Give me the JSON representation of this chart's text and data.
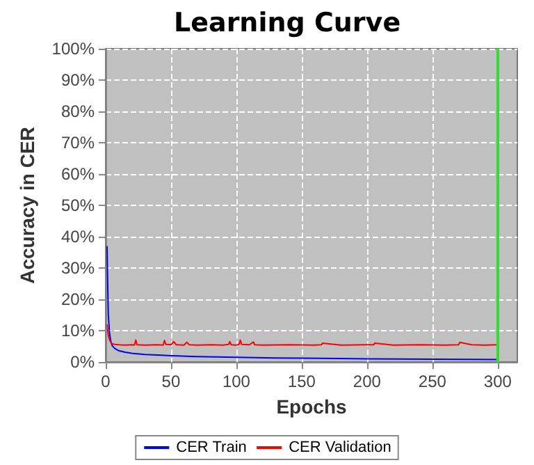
{
  "chart_data": {
    "type": "line",
    "title": "Learning Curve",
    "xlabel": "Epochs",
    "ylabel": "Accuracy in CER",
    "series": [
      {
        "name": "CER Train",
        "color": "#0000ff",
        "x": [
          1,
          2,
          3,
          4,
          5,
          7,
          10,
          15,
          20,
          30,
          40,
          50,
          70,
          100,
          130,
          150,
          200,
          250,
          300
        ],
        "values": [
          37,
          15,
          9,
          6.5,
          5.2,
          4.3,
          3.6,
          3.1,
          2.8,
          2.4,
          2.2,
          2,
          1.7,
          1.5,
          1.3,
          1.2,
          1,
          0.9,
          0.8
        ]
      },
      {
        "name": "CER Validation",
        "color": "#ff0000",
        "x": [
          1,
          2,
          3,
          4,
          5,
          7,
          10,
          15,
          20,
          22,
          23,
          24,
          30,
          40,
          44,
          45,
          46,
          50,
          52,
          54,
          60,
          62,
          64,
          70,
          80,
          90,
          94,
          95,
          96,
          100,
          102,
          103,
          104,
          110,
          113,
          114,
          120,
          140,
          160,
          165,
          166,
          180,
          200,
          205,
          206,
          220,
          240,
          260,
          270,
          271,
          280,
          290,
          300
        ],
        "values": [
          12,
          8.5,
          7,
          6.2,
          5.8,
          5.6,
          5.5,
          5.4,
          5.5,
          5.4,
          7,
          5.5,
          5.4,
          5.5,
          5.4,
          6.9,
          5.6,
          5.5,
          6.5,
          5.5,
          5.4,
          6.3,
          5.5,
          5.4,
          5.5,
          5.4,
          5.6,
          6.5,
          5.5,
          5.4,
          5.6,
          7,
          5.6,
          5.5,
          6.4,
          5.5,
          5.4,
          5.5,
          5.4,
          5.5,
          6,
          5.4,
          5.5,
          5.5,
          6,
          5.4,
          5.5,
          5.4,
          5.5,
          6.3,
          5.5,
          5.4,
          5.5
        ]
      }
    ],
    "xlim": [
      0,
      315
    ],
    "xticks": [
      0,
      50,
      100,
      150,
      200,
      250,
      300
    ],
    "ylim": [
      0,
      100
    ],
    "yticks": [
      {
        "value": 0,
        "label": "0%"
      },
      {
        "value": 10,
        "label": "10%"
      },
      {
        "value": 20,
        "label": "20%"
      },
      {
        "value": 30,
        "label": "30%"
      },
      {
        "value": 40,
        "label": "40%"
      },
      {
        "value": 50,
        "label": "50%"
      },
      {
        "value": 60,
        "label": "60%"
      },
      {
        "value": 70,
        "label": "70%"
      },
      {
        "value": 80,
        "label": "80%"
      },
      {
        "value": 90,
        "label": "90%"
      },
      {
        "value": 100,
        "label": "100%"
      }
    ],
    "ref_lines": [
      {
        "axis": "x",
        "value": 300,
        "label": null,
        "color": "#33dd33"
      }
    ],
    "grid": true,
    "legend": "bottom",
    "marker": "none",
    "line_style": "solid"
  }
}
